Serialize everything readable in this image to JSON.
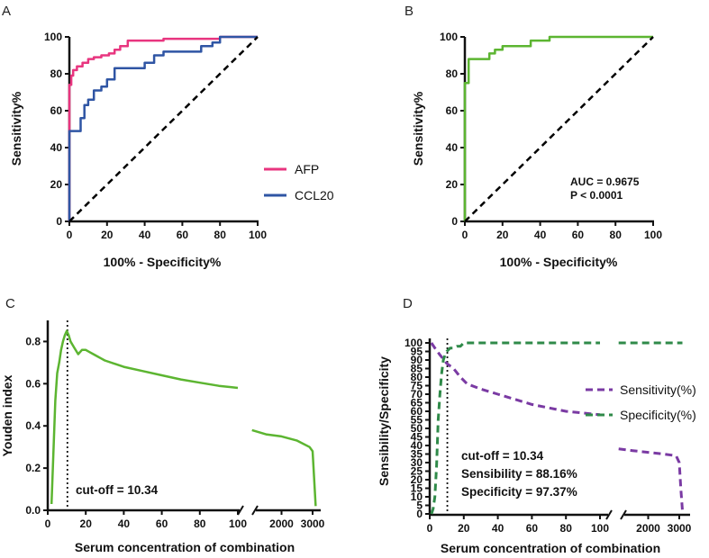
{
  "chart_data": [
    {
      "panel": "A",
      "type": "line",
      "xlabel": "100% - Specificity%",
      "ylabel": "Sensitivity%",
      "xlim": [
        0,
        100
      ],
      "ylim": [
        0,
        100
      ],
      "x_ticks": [
        "0",
        "20",
        "40",
        "60",
        "80",
        "100"
      ],
      "y_ticks": [
        "0",
        "20",
        "40",
        "60",
        "80",
        "100"
      ],
      "legend": [
        {
          "name": "AFP",
          "color": "#e8357f"
        },
        {
          "name": "CCL20",
          "color": "#2f55a4"
        }
      ],
      "series": [
        {
          "name": "AFP",
          "color": "#e8357f",
          "x": [
            0,
            0,
            1,
            1,
            2,
            2,
            4,
            4,
            7,
            7,
            10,
            10,
            13,
            13,
            17,
            17,
            21,
            21,
            24,
            24,
            27,
            27,
            31,
            31,
            50,
            50,
            80,
            80,
            100
          ],
          "y": [
            0,
            74,
            74,
            79,
            79,
            82,
            82,
            84,
            84,
            86,
            86,
            88,
            88,
            89,
            89,
            90,
            90,
            91,
            91,
            93,
            93,
            95,
            95,
            98,
            98,
            99,
            99,
            100,
            100
          ]
        },
        {
          "name": "CCL20",
          "color": "#2f55a4",
          "x": [
            0,
            0,
            6,
            6,
            8,
            8,
            10,
            10,
            13,
            13,
            17,
            17,
            20,
            20,
            24,
            24,
            40,
            40,
            45,
            45,
            50,
            50,
            70,
            70,
            76,
            76,
            80,
            80,
            100
          ],
          "y": [
            0,
            49,
            49,
            56,
            56,
            63,
            63,
            66,
            66,
            71,
            71,
            73,
            73,
            77,
            77,
            83,
            83,
            86,
            86,
            90,
            90,
            92,
            92,
            95,
            95,
            97,
            97,
            100,
            100
          ]
        },
        {
          "name": "reference",
          "color": "#000000",
          "x": [
            0,
            100
          ],
          "y": [
            0,
            100
          ]
        }
      ]
    },
    {
      "panel": "B",
      "type": "line",
      "xlabel": "100% - Specificity%",
      "ylabel": "Sensitivity%",
      "xlim": [
        0,
        100
      ],
      "ylim": [
        0,
        100
      ],
      "x_ticks": [
        "0",
        "20",
        "40",
        "60",
        "80",
        "100"
      ],
      "y_ticks": [
        "0",
        "20",
        "40",
        "60",
        "80",
        "100"
      ],
      "annotations": [
        "AUC = 0.9675",
        "P < 0.0001"
      ],
      "series": [
        {
          "name": "combination",
          "color": "#5cb531",
          "x": [
            0,
            0,
            2,
            2,
            13,
            13,
            16,
            16,
            20,
            20,
            35,
            35,
            45,
            45,
            100
          ],
          "y": [
            0,
            75,
            75,
            88,
            88,
            91,
            91,
            93,
            93,
            95,
            95,
            98,
            98,
            100,
            100
          ]
        },
        {
          "name": "reference",
          "color": "#000000",
          "x": [
            0,
            100
          ],
          "y": [
            0,
            100
          ]
        }
      ]
    },
    {
      "panel": "C",
      "type": "line",
      "xlabel": "Serum concentration of combination",
      "ylabel": "Youden index",
      "ylim": [
        0,
        0.9
      ],
      "x_ticks": [
        "0",
        "20",
        "40",
        "60",
        "80",
        "100",
        "2000",
        "3000"
      ],
      "y_ticks": [
        "0.0",
        "0.2",
        "0.4",
        "0.6",
        "0.8"
      ],
      "cutoff": 10.34,
      "cutoff_label": "cut-off = 10.34",
      "series": [
        {
          "name": "Youden index",
          "color": "#5cb531",
          "segment1": {
            "x": [
              2,
              4,
              5,
              6,
              7,
              8,
              9,
              10,
              11,
              12,
              14,
              16,
              18,
              20,
              22,
              24,
              26,
              28,
              30,
              40,
              50,
              60,
              70,
              80,
              90,
              100
            ],
            "y": [
              0.03,
              0.52,
              0.65,
              0.7,
              0.76,
              0.8,
              0.83,
              0.85,
              0.83,
              0.8,
              0.77,
              0.74,
              0.76,
              0.76,
              0.75,
              0.74,
              0.73,
              0.72,
              0.71,
              0.68,
              0.66,
              0.64,
              0.62,
              0.605,
              0.59,
              0.58
            ]
          },
          "segment2": {
            "x": [
              1050,
              1500,
              2000,
              2500,
              2900,
              3000,
              3050,
              3100
            ],
            "y": [
              0.38,
              0.36,
              0.35,
              0.33,
              0.3,
              0.28,
              0.15,
              0.02
            ]
          }
        }
      ]
    },
    {
      "panel": "D",
      "type": "line",
      "xlabel": "Serum concentration of combination",
      "ylabel": "Sensibility/Specificity",
      "ylim": [
        0,
        100
      ],
      "x_ticks": [
        "0",
        "20",
        "40",
        "60",
        "80",
        "100",
        "2000",
        "3000"
      ],
      "y_ticks": [
        "0",
        "5",
        "10",
        "15",
        "20",
        "25",
        "30",
        "35",
        "40",
        "45",
        "50",
        "55",
        "60",
        "65",
        "70",
        "75",
        "80",
        "85",
        "90",
        "95",
        "100"
      ],
      "cutoff": 10.34,
      "annotations": [
        "cut-off = 10.34",
        "Sensibility = 88.16%",
        "Specificity = 97.37%"
      ],
      "legend": [
        {
          "name": "Sensitivity(%)",
          "color": "#7a3aa3"
        },
        {
          "name": "Specificity(%)",
          "color": "#2f8a49"
        }
      ],
      "series": [
        {
          "name": "Sensitivity(%)",
          "color": "#7a3aa3",
          "segment1": {
            "x": [
              1,
              3,
              6,
              10,
              14,
              18,
              22,
              30,
              40,
              50,
              60,
              70,
              80,
              90,
              100
            ],
            "y": [
              100,
              97,
              93,
              88,
              85,
              80,
              76,
              73,
              70,
              67,
              64,
              62,
              60,
              59,
              58
            ]
          },
          "segment2": {
            "x": [
              1050,
              1500,
              2000,
              2500,
              2900,
              3000,
              3050,
              3100
            ],
            "y": [
              38,
              37,
              36,
              35,
              34,
              30,
              15,
              2
            ]
          }
        },
        {
          "name": "Specificity(%)",
          "color": "#2f8a49",
          "segment1": {
            "x": [
              1,
              2,
              3,
              4,
              5,
              6,
              7,
              8,
              9,
              10,
              12,
              14,
              16,
              18,
              20,
              40,
              60,
              80,
              100
            ],
            "y": [
              0,
              3,
              10,
              28,
              55,
              70,
              82,
              90,
              93,
              95,
              97,
              97,
              98,
              98,
              100,
              100,
              100,
              100,
              100
            ]
          },
          "segment2": {
            "x": [
              1050,
              2000,
              3000,
              3100
            ],
            "y": [
              100,
              100,
              100,
              100
            ]
          }
        }
      ]
    }
  ]
}
